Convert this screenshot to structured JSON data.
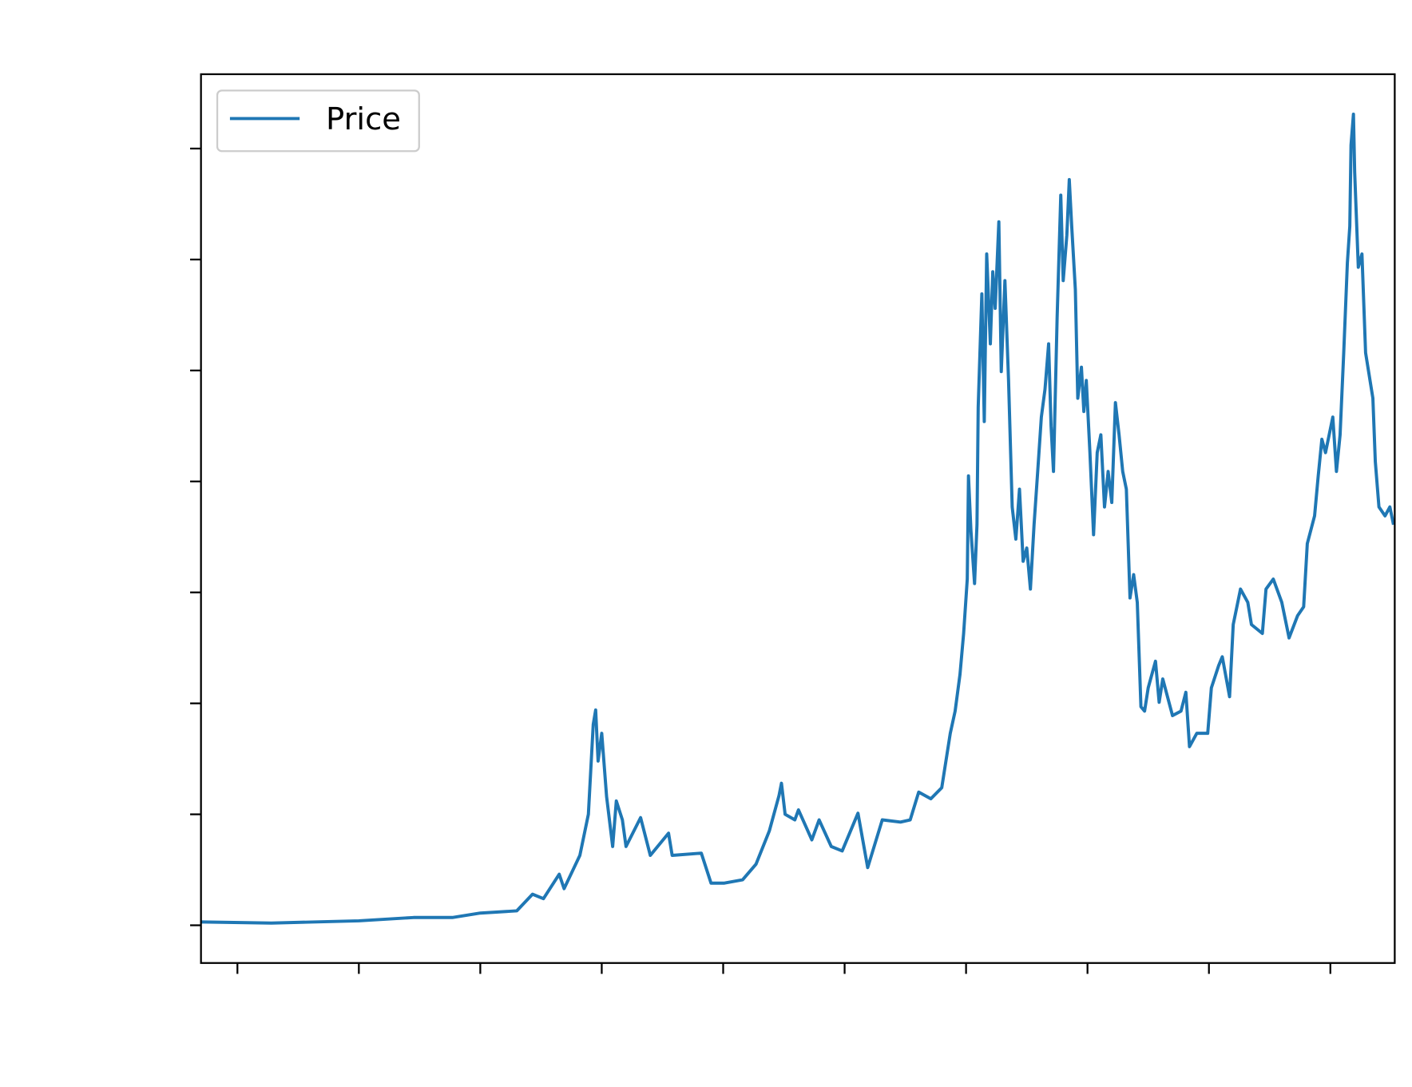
{
  "chart_data": {
    "type": "line",
    "x": [
      2014.7,
      2015.28,
      2016.0,
      2016.45,
      2016.77,
      2017.0,
      2017.3,
      2017.43,
      2017.52,
      2017.65,
      2017.69,
      2017.82,
      2017.89,
      2017.93,
      2017.95,
      2017.97,
      2018.0,
      2018.04,
      2018.09,
      2018.12,
      2018.17,
      2018.2,
      2018.32,
      2018.4,
      2018.55,
      2018.58,
      2018.82,
      2018.9,
      2019.01,
      2019.16,
      2019.27,
      2019.38,
      2019.46,
      2019.48,
      2019.51,
      2019.59,
      2019.62,
      2019.73,
      2019.79,
      2019.89,
      2019.98,
      2020.11,
      2020.19,
      2020.31,
      2020.46,
      2020.54,
      2020.61,
      2020.71,
      2020.8,
      2020.87,
      2020.91,
      2020.95,
      2020.98,
      2021.01,
      2021.02,
      2021.04,
      2021.07,
      2021.09,
      2021.1,
      2021.13,
      2021.15,
      2021.17,
      2021.2,
      2021.22,
      2021.24,
      2021.27,
      2021.29,
      2021.32,
      2021.35,
      2021.38,
      2021.41,
      2021.44,
      2021.47,
      2021.5,
      2021.53,
      2021.56,
      2021.59,
      2021.62,
      2021.65,
      2021.68,
      2021.7,
      2021.72,
      2021.75,
      2021.78,
      2021.8,
      2021.83,
      2021.85,
      2021.87,
      2021.9,
      2021.92,
      2021.95,
      2021.97,
      2021.99,
      2022.02,
      2022.05,
      2022.08,
      2022.11,
      2022.14,
      2022.17,
      2022.2,
      2022.23,
      2022.26,
      2022.29,
      2022.32,
      2022.35,
      2022.38,
      2022.41,
      2022.44,
      2022.47,
      2022.5,
      2022.56,
      2022.59,
      2022.62,
      2022.7,
      2022.77,
      2022.81,
      2022.84,
      2022.9,
      2022.99,
      2023.02,
      2023.08,
      2023.11,
      2023.17,
      2023.2,
      2023.26,
      2023.32,
      2023.35,
      2023.44,
      2023.47,
      2023.53,
      2023.6,
      2023.66,
      2023.73,
      2023.78,
      2023.81,
      2023.87,
      2023.9,
      2023.93,
      2023.96,
      2024.02,
      2024.05,
      2024.08,
      2024.11,
      2024.14,
      2024.16,
      2024.17,
      2024.19,
      2024.2,
      2024.23,
      2024.26,
      2024.29,
      2024.35,
      2024.37,
      2024.4,
      2024.45,
      2024.49,
      2024.52
    ],
    "series": [
      {
        "name": "Price",
        "color": "#1f77b4",
        "values": [
          300,
          200,
          400,
          700,
          700,
          1100,
          1300,
          2800,
          2400,
          4600,
          3300,
          6300,
          10000,
          18100,
          19400,
          14800,
          17300,
          11600,
          7100,
          11200,
          9500,
          7100,
          9700,
          6300,
          8300,
          6300,
          6500,
          3800,
          3800,
          4100,
          5500,
          8500,
          11700,
          12800,
          10000,
          9500,
          10400,
          7700,
          9500,
          7100,
          6700,
          10100,
          5200,
          9500,
          9300,
          9500,
          12000,
          11400,
          12400,
          17300,
          19300,
          22600,
          26300,
          31200,
          40500,
          35600,
          30800,
          36100,
          46700,
          56900,
          45400,
          60500,
          52400,
          58900,
          55600,
          63400,
          49900,
          58100,
          49100,
          37700,
          34800,
          39300,
          32800,
          34000,
          30300,
          36100,
          40900,
          45800,
          48300,
          52400,
          45000,
          40900,
          54800,
          65800,
          58100,
          62200,
          67200,
          63000,
          57300,
          47500,
          50300,
          46300,
          49100,
          42600,
          35200,
          42600,
          44200,
          37700,
          40900,
          38100,
          47100,
          44200,
          40900,
          39300,
          29500,
          31600,
          29100,
          19700,
          19300,
          21400,
          23800,
          20100,
          22200,
          18900,
          19300,
          21000,
          16100,
          17300,
          17300,
          21400,
          23400,
          24200,
          20600,
          27100,
          30300,
          29100,
          27100,
          26300,
          30300,
          31200,
          29100,
          25900,
          27900,
          28700,
          34400,
          36900,
          40500,
          43800,
          42600,
          45800,
          40900,
          44200,
          51600,
          59700,
          63000,
          70300,
          73100,
          67900,
          59300,
          60500,
          51600,
          47500,
          41800,
          37700,
          36900,
          37700,
          36100
        ]
      }
    ],
    "xlim": [
      2014.7,
      2024.53
    ],
    "xticks": [
      2015,
      2016,
      2017,
      2018,
      2019,
      2020,
      2021,
      2022,
      2023,
      2024
    ],
    "ylim": [
      -3400,
      76700
    ],
    "yticks": [
      0,
      10000,
      20000,
      30000,
      40000,
      50000,
      60000,
      70000
    ],
    "legend": "upper left"
  }
}
